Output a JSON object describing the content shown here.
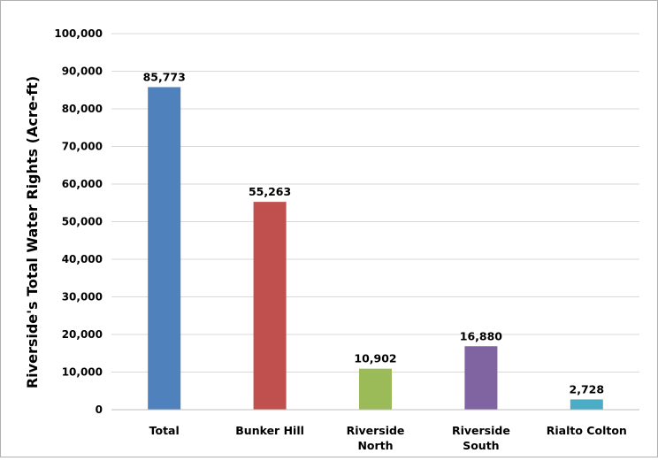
{
  "chart_data": {
    "type": "bar",
    "ylabel": "Riverside's Total Water Rights (Acre-ft)",
    "xlabel": "",
    "title": "",
    "ylim": [
      0,
      100000
    ],
    "y_ticks": [
      "0",
      "10,000",
      "20,000",
      "30,000",
      "40,000",
      "50,000",
      "60,000",
      "70,000",
      "80,000",
      "90,000",
      "100,000"
    ],
    "grid": true,
    "legend": "none",
    "categories": [
      [
        "Total"
      ],
      [
        "Bunker Hill"
      ],
      [
        "Riverside",
        "North"
      ],
      [
        "Riverside",
        "South"
      ],
      [
        "Rialto Colton"
      ]
    ],
    "values": [
      85773,
      55263,
      10902,
      16880,
      2728
    ],
    "data_labels": [
      "85,773",
      "55,263",
      "10,902",
      "16,880",
      "2,728"
    ],
    "colors": [
      "#4f81bd",
      "#c0504d",
      "#9bbb59",
      "#8064a2",
      "#4bacc6"
    ]
  }
}
